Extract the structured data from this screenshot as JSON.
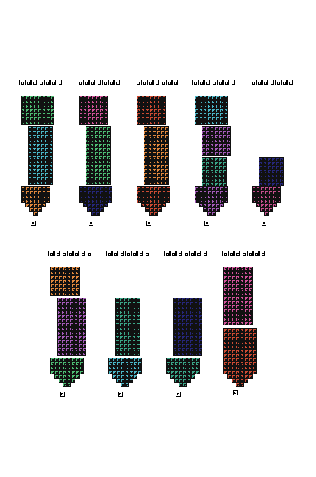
{
  "palette": {
    "green": "#4dbb73",
    "cyan": "#4ab6c6",
    "pink": "#d2529a",
    "red": "#cc4b33",
    "orange": "#e1883d",
    "purple": "#a45bb9",
    "teal": "#3aa587",
    "navy": "#25267a",
    "magenta": "#c64e8d",
    "outline": "#111111",
    "background": "#ffffff"
  },
  "tubes": [
    {
      "id": "tube-1",
      "tray_slots": 7,
      "segments": [
        "green",
        "cyan",
        "orange"
      ]
    },
    {
      "id": "tube-2",
      "tray_slots": 7,
      "segments": [
        "pink",
        "green",
        "navy"
      ]
    },
    {
      "id": "tube-3",
      "tray_slots": 7,
      "segments": [
        "red",
        "orange",
        "red"
      ]
    },
    {
      "id": "tube-4",
      "tray_slots": 7,
      "segments": [
        "cyan",
        "purple",
        "teal",
        "purple"
      ]
    },
    {
      "id": "tube-5",
      "tray_slots": 7,
      "segments": [
        "navy",
        "magenta"
      ]
    },
    {
      "id": "tube-6",
      "tray_slots": 7,
      "segments": [
        "orange",
        "purple",
        "green"
      ]
    },
    {
      "id": "tube-7",
      "tray_slots": 7,
      "segments": [
        "teal",
        "cyan"
      ]
    },
    {
      "id": "tube-8",
      "tray_slots": 7,
      "segments": [
        "navy",
        "teal"
      ]
    },
    {
      "id": "tube-9",
      "tray_slots": 7,
      "segments": [
        "pink",
        "red"
      ]
    }
  ]
}
